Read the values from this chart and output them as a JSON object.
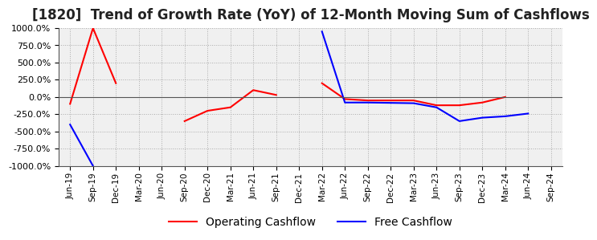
{
  "title": "[1820]  Trend of Growth Rate (YoY) of 12-Month Moving Sum of Cashflows",
  "title_fontsize": 12,
  "ylim": [
    -1000,
    1000
  ],
  "yticks": [
    1000,
    750,
    500,
    250,
    0,
    -250,
    -500,
    -750,
    -1000
  ],
  "background_color": "#ffffff",
  "plot_bg_color": "#f0f0f0",
  "grid_color": "#aaaaaa",
  "legend_labels": [
    "Operating Cashflow",
    "Free Cashflow"
  ],
  "legend_colors": [
    "#ff0000",
    "#0000ff"
  ],
  "x_labels": [
    "Jun-19",
    "Sep-19",
    "Dec-19",
    "Mar-20",
    "Jun-20",
    "Sep-20",
    "Dec-20",
    "Mar-21",
    "Jun-21",
    "Sep-21",
    "Dec-21",
    "Mar-22",
    "Jun-22",
    "Sep-22",
    "Dec-22",
    "Mar-23",
    "Jun-23",
    "Sep-23",
    "Dec-23",
    "Mar-24",
    "Jun-24",
    "Sep-24"
  ],
  "operating_cashflow": [
    -100,
    1000,
    200,
    null,
    null,
    -350,
    -200,
    -150,
    100,
    30,
    null,
    200,
    -30,
    -50,
    -50,
    -50,
    -120,
    -120,
    -80,
    0,
    null,
    null
  ],
  "free_cashflow": [
    -400,
    -1000,
    null,
    null,
    null,
    null,
    null,
    null,
    null,
    null,
    null,
    950,
    -80,
    -80,
    -85,
    -90,
    -150,
    -350,
    -300,
    -280,
    -240,
    null
  ]
}
